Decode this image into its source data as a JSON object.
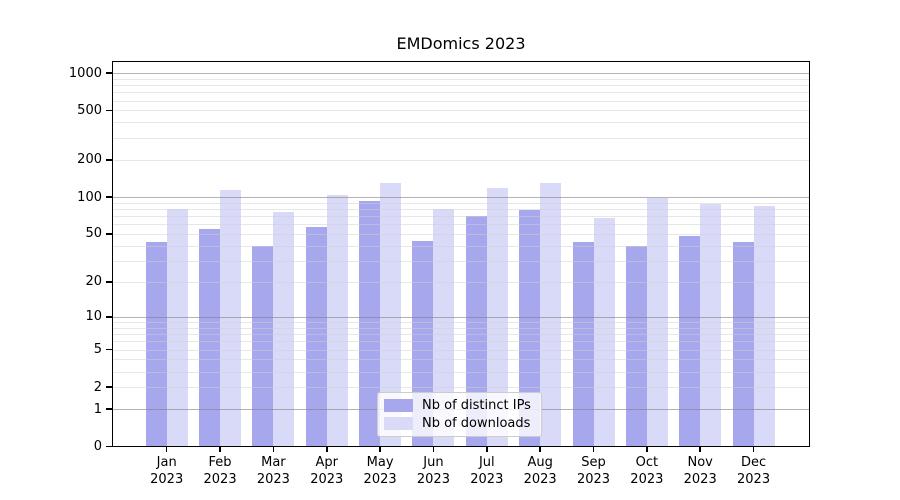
{
  "chart_data": {
    "type": "bar",
    "title": "EMDomics 2023",
    "categories": [
      "Jan",
      "Feb",
      "Mar",
      "Apr",
      "May",
      "Jun",
      "Jul",
      "Aug",
      "Sep",
      "Oct",
      "Nov",
      "Dec"
    ],
    "category_year": "2023",
    "series": [
      {
        "name": "Nb of distinct IPs",
        "color": "#a7a7ee",
        "values": [
          43,
          55,
          40,
          57,
          92,
          44,
          70,
          78,
          43,
          40,
          48,
          43
        ]
      },
      {
        "name": "Nb of downloads",
        "color": "#d9d9f8",
        "values": [
          80,
          114,
          76,
          104,
          129,
          80,
          118,
          129,
          67,
          98,
          87,
          84
        ]
      }
    ],
    "xlabel": "",
    "ylabel": "",
    "yscale": "log1p",
    "yticks": [
      0,
      1,
      2,
      5,
      10,
      20,
      50,
      100,
      200,
      500,
      1000
    ],
    "ylim": [
      0,
      1249
    ],
    "grid": {
      "major_lines": [
        1,
        10,
        100,
        1000
      ],
      "minor_decades": [
        1,
        10,
        100
      ],
      "minor_multiples": [
        2,
        3,
        4,
        5,
        6,
        7,
        8,
        9
      ]
    },
    "legend": {
      "position": "lower center"
    },
    "colors": {
      "grid_major": "#808080",
      "grid_minor": "#cfcfcf",
      "spine": "#000000"
    }
  }
}
